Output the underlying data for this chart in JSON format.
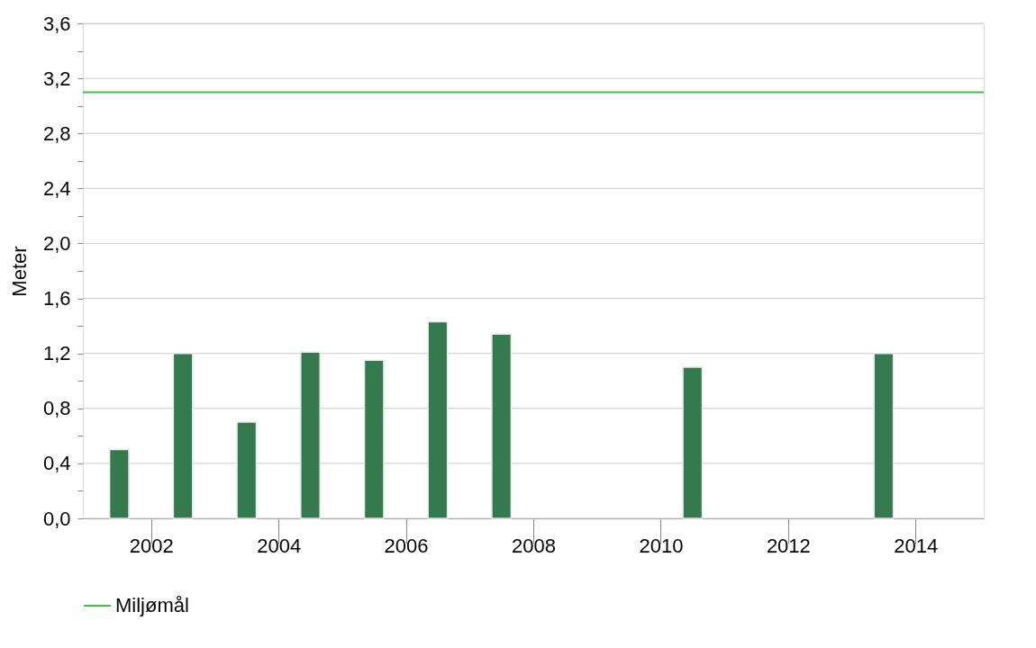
{
  "chart_data": {
    "type": "bar",
    "ylabel": "Meter",
    "x": [
      2001.5,
      2002.5,
      2003.5,
      2004.5,
      2005.5,
      2006.5,
      2007.5,
      2010.5,
      2013.5
    ],
    "values": [
      0.5,
      1.2,
      0.7,
      1.21,
      1.15,
      1.43,
      1.34,
      1.1,
      1.2
    ],
    "color": "#337a4f",
    "xlim": [
      2001,
      2015
    ],
    "xticks": [
      2002,
      2004,
      2006,
      2008,
      2010,
      2012,
      2014
    ],
    "ylim": [
      0,
      3.6
    ],
    "yticks": [
      {
        "value": 0,
        "label": "0,0"
      },
      {
        "value": 0.2,
        "label": null
      },
      {
        "value": 0.4,
        "label": "0,4"
      },
      {
        "value": 0.6,
        "label": null
      },
      {
        "value": 0.8,
        "label": "0,8"
      },
      {
        "value": 1.0,
        "label": null
      },
      {
        "value": 1.2,
        "label": "1,2"
      },
      {
        "value": 1.4,
        "label": null
      },
      {
        "value": 1.6,
        "label": "1,6"
      },
      {
        "value": 1.8,
        "label": null
      },
      {
        "value": 2.0,
        "label": "2,0"
      },
      {
        "value": 2.2,
        "label": null
      },
      {
        "value": 2.4,
        "label": "2,4"
      },
      {
        "value": 2.6,
        "label": null
      },
      {
        "value": 2.8,
        "label": "2,8"
      },
      {
        "value": 3.0,
        "label": null
      },
      {
        "value": 3.2,
        "label": "3,2"
      },
      {
        "value": 3.4,
        "label": null
      },
      {
        "value": 3.6,
        "label": "3,6"
      }
    ],
    "grid": "y",
    "legend": "bottom",
    "ref_lines": [
      {
        "axis": "y",
        "value": 3.1,
        "label": "Miljømål",
        "color": "#3fc23f"
      }
    ]
  }
}
